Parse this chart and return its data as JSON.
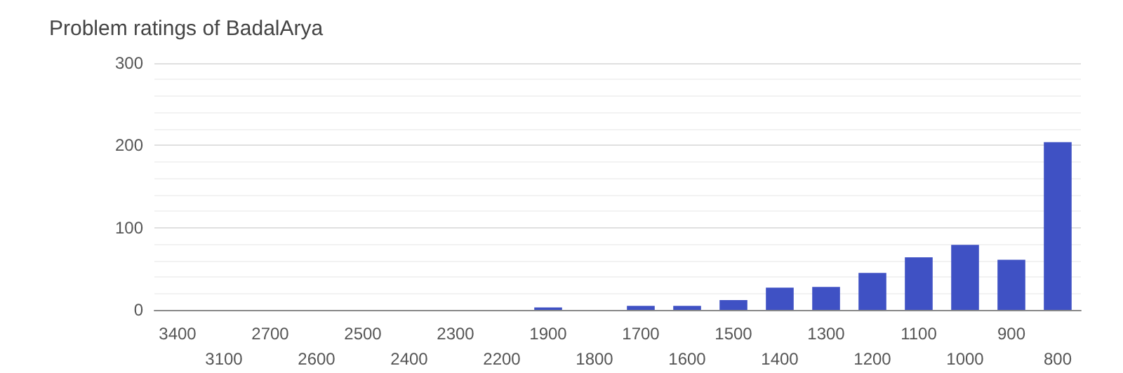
{
  "chart_data": {
    "type": "bar",
    "title": "Problem ratings of BadalArya",
    "categories": [
      "3400",
      "3100",
      "2700",
      "2600",
      "2500",
      "2400",
      "2300",
      "2200",
      "1900",
      "1800",
      "1700",
      "1600",
      "1500",
      "1400",
      "1300",
      "1200",
      "1100",
      "1000",
      "900",
      "800"
    ],
    "values": [
      0,
      0,
      0,
      0,
      0,
      0,
      0,
      0,
      3,
      0,
      5,
      5,
      12,
      27,
      28,
      45,
      64,
      79,
      61,
      204
    ],
    "color": "#3f51c4",
    "ylim": [
      0,
      300
    ],
    "yticks": [
      0,
      100,
      200,
      300
    ],
    "grid": "y"
  }
}
